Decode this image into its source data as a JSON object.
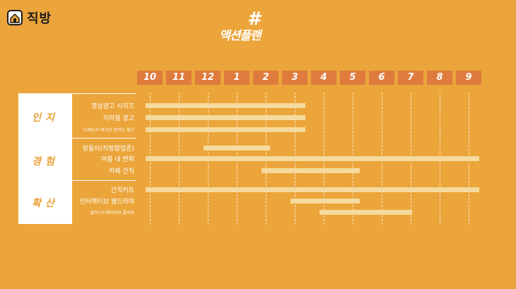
{
  "brand": {
    "name": "직방",
    "icon": "house-logo-icon"
  },
  "title": {
    "hash": "#",
    "text": "액션플랜"
  },
  "chart_data": {
    "type": "gantt",
    "months": [
      "10",
      "11",
      "12",
      "1",
      "2",
      "3",
      "4",
      "5",
      "6",
      "7",
      "8",
      "9"
    ],
    "groups": [
      {
        "name": "인지",
        "rows": [
          {
            "label": "영상광고 시리즈",
            "start": 0,
            "end": 5.5,
            "small": false
          },
          {
            "label": "지하철 광고",
            "start": 0,
            "end": 5.5,
            "small": false
          },
          {
            "label": "디케도리 여거신 인지도 제고",
            "start": 0,
            "end": 5.5,
            "small": true
          }
        ]
      },
      {
        "name": "경험",
        "rows": [
          {
            "label": "방들이(직방팝업존)",
            "start": 2,
            "end": 4.3,
            "small": false
          },
          {
            "label": "여름 내 변화",
            "start": 0,
            "end": 11.5,
            "small": false
          },
          {
            "label": "카페 간직",
            "start": 4,
            "end": 7.4,
            "small": false
          }
        ]
      },
      {
        "name": "확산",
        "rows": [
          {
            "label": "간직키트",
            "start": 0,
            "end": 11.5,
            "small": false
          },
          {
            "label": "인터랙티브 웹드라마",
            "start": 5,
            "end": 7.4,
            "small": false
          },
          {
            "label": "일러스트레이터와 콜라보",
            "start": 6,
            "end": 9.2,
            "small": true
          }
        ]
      }
    ],
    "colors": {
      "background": "#EBA53A",
      "month_tag": "#E07B3E",
      "bar": "#F6DA9E",
      "panel": "#FFFFFF",
      "group_text": "#E9A33A"
    }
  }
}
